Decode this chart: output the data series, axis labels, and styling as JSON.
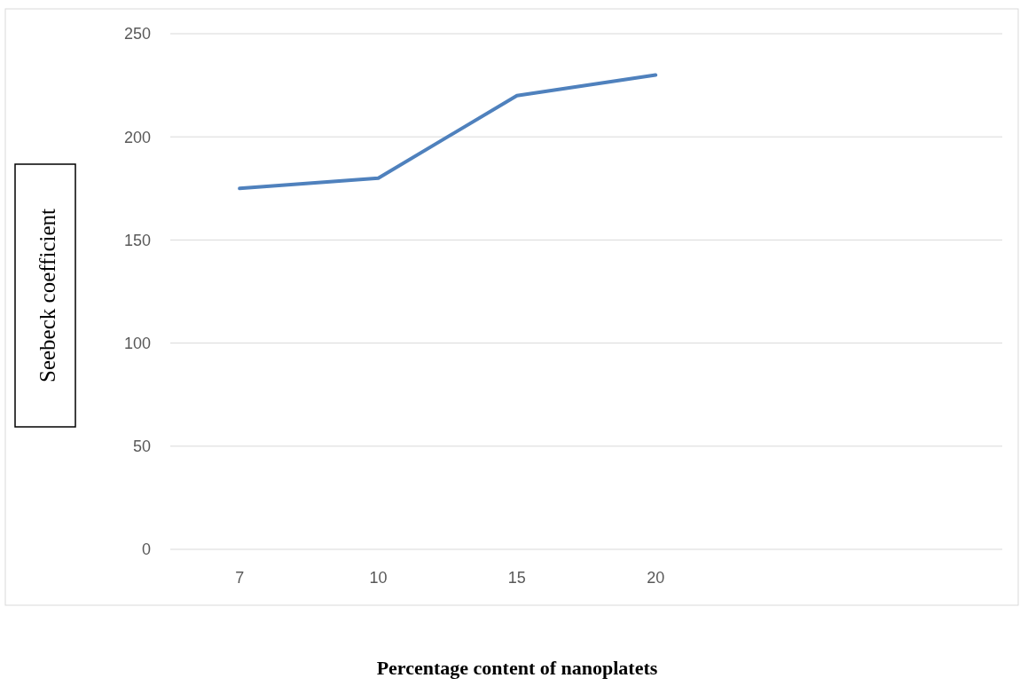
{
  "chart_data": {
    "type": "line",
    "xlabel": "Percentage content of nanoplatets",
    "ylabel": "Seebeck coefficient",
    "categories": [
      "7",
      "10",
      "15",
      "20",
      null,
      null
    ],
    "series": [
      {
        "color": "#4f81bd",
        "values": [
          175,
          180,
          220,
          230,
          null,
          null
        ]
      }
    ],
    "ylim": [
      0,
      250
    ],
    "yticks": [
      0,
      50,
      100,
      150,
      200,
      250
    ],
    "grid": "y",
    "marker": "none",
    "line_style": "solid"
  }
}
